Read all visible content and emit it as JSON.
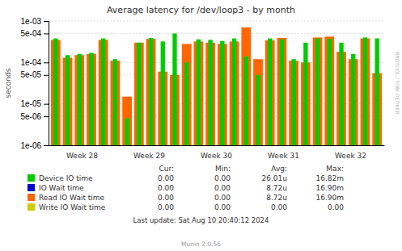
{
  "chart_data": {
    "type": "bar",
    "title": "Average latency for /dev/loop3 - by month",
    "ylabel": "seconds",
    "log": "y",
    "grid": true,
    "ylim": [
      1e-06,
      0.001
    ],
    "yticks": [
      {
        "value": 1e-06,
        "label": "1e-06"
      },
      {
        "value": 5e-06,
        "label": "5e-06"
      },
      {
        "value": 1e-05,
        "label": "1e-05"
      },
      {
        "value": 5e-05,
        "label": "5e-05"
      },
      {
        "value": 0.0001,
        "label": "1e-04"
      },
      {
        "value": 0.0005,
        "label": "5e-04"
      },
      {
        "value": 0.001,
        "label": "1e-03"
      }
    ],
    "categories": [
      null,
      null,
      null,
      null,
      null,
      null,
      null,
      null,
      null,
      null,
      null,
      null,
      null,
      null,
      null,
      null,
      null,
      null,
      null,
      null,
      null,
      null,
      null,
      null,
      null,
      null,
      null,
      null
    ],
    "series": [
      {
        "name": "Device IO time",
        "color": "#00cc00",
        "values": [
          0.00038,
          0.00015,
          0.00016,
          0.00017,
          0.00038,
          0.00012,
          4.5e-06,
          0.0003,
          0.00039,
          0.00032,
          0.0005,
          0.0001,
          0.00036,
          0.00035,
          0.00033,
          0.00038,
          0.00014,
          5e-05,
          0.00038,
          0.00036,
          0.00012,
          0.0003,
          0.00038,
          0.00037,
          0.0003,
          0.00016,
          0.0004,
          0.00038
        ],
        "stats": [
          "0.00",
          "0.00",
          "26.01u",
          "16.82m"
        ]
      },
      {
        "name": "IO Wait time",
        "color": "#0000cc",
        "values": [
          null,
          null,
          null,
          null,
          null,
          null,
          null,
          null,
          null,
          null,
          null,
          null,
          null,
          null,
          null,
          null,
          null,
          null,
          null,
          null,
          null,
          null,
          null,
          null,
          null,
          null,
          null,
          null
        ],
        "stats": [
          "0.00",
          "0.00",
          "8.72u",
          "16.90m"
        ]
      },
      {
        "name": "Read IO Wait time",
        "color": "#ff6600",
        "values": [
          0.00035,
          0.00013,
          0.00015,
          0.00016,
          0.00035,
          0.00011,
          1.5e-05,
          0.0003,
          0.00037,
          6e-05,
          5e-05,
          0.00028,
          0.00032,
          0.0003,
          0.00028,
          0.00032,
          0.0007,
          0.00012,
          0.00034,
          0.00039,
          0.00011,
          0.0001,
          0.0004,
          0.00042,
          0.00018,
          0.00012,
          0.00038,
          5.5e-05
        ],
        "stats": [
          "0.00",
          "0.00",
          "8.72u",
          "16.90m"
        ]
      },
      {
        "name": "Write IO Wait time",
        "color": "#cccc00",
        "values": [
          null,
          null,
          null,
          null,
          null,
          null,
          null,
          null,
          null,
          null,
          null,
          null,
          null,
          null,
          null,
          null,
          null,
          null,
          null,
          null,
          null,
          null,
          null,
          null,
          null,
          null,
          null,
          null
        ],
        "stats": [
          "0.00",
          "0.00",
          "0.00",
          "0.00"
        ]
      }
    ],
    "stats_headers": [
      "Cur:",
      "Min:",
      "Avg:",
      "Max:"
    ],
    "annotations": [
      "Week 28",
      "Week 29",
      "Week 30",
      "Week 31",
      "Week 32"
    ],
    "footer": [
      "Last update: Sat Aug 10 20:40:12 2024",
      "Munin 2.0.56"
    ],
    "watermark": "RRDTOOL / TOBI OETIKER"
  }
}
